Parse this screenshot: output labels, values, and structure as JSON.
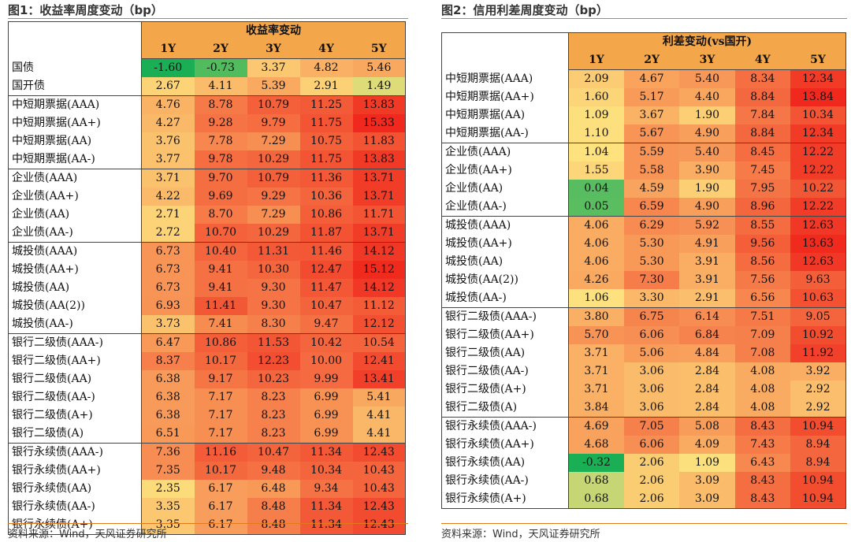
{
  "chart_data": [
    {
      "type": "heatmap",
      "title": "图1：收益率周度变动（bp）",
      "group_header": "收益率变动",
      "columns": [
        "1Y",
        "2Y",
        "3Y",
        "4Y",
        "5Y"
      ],
      "groups": [
        {
          "rows": [
            {
              "label": "国债",
              "values": [
                -1.6,
                -0.73,
                3.37,
                4.82,
                5.46
              ]
            },
            {
              "label": "国开债",
              "values": [
                2.67,
                4.11,
                5.39,
                2.91,
                1.49
              ]
            }
          ]
        },
        {
          "rows": [
            {
              "label": "中短期票据(AAA)",
              "values": [
                4.76,
                8.78,
                10.79,
                11.25,
                13.83
              ]
            },
            {
              "label": "中短期票据(AA+)",
              "values": [
                4.27,
                9.28,
                9.79,
                11.75,
                15.33
              ]
            },
            {
              "label": "中短期票据(AA)",
              "values": [
                3.76,
                7.78,
                7.29,
                10.75,
                11.83
              ]
            },
            {
              "label": "中短期票据(AA-)",
              "values": [
                3.77,
                9.78,
                10.29,
                11.75,
                13.83
              ]
            }
          ]
        },
        {
          "rows": [
            {
              "label": "企业债(AAA)",
              "values": [
                3.71,
                9.7,
                10.79,
                11.36,
                13.71
              ]
            },
            {
              "label": "企业债(AA+)",
              "values": [
                4.22,
                9.69,
                9.29,
                10.36,
                13.71
              ]
            },
            {
              "label": "企业债(AA)",
              "values": [
                2.71,
                8.7,
                7.29,
                10.86,
                11.71
              ]
            },
            {
              "label": "企业债(AA-)",
              "values": [
                2.72,
                10.7,
                10.29,
                11.87,
                13.71
              ]
            }
          ]
        },
        {
          "rows": [
            {
              "label": "城投债(AAA)",
              "values": [
                6.73,
                10.4,
                11.31,
                11.46,
                14.12
              ]
            },
            {
              "label": "城投债(AA+)",
              "values": [
                6.73,
                9.41,
                10.3,
                12.47,
                15.12
              ]
            },
            {
              "label": "城投债(AA)",
              "values": [
                6.73,
                9.41,
                9.3,
                11.47,
                14.12
              ]
            },
            {
              "label": "城投债(AA(2))",
              "values": [
                6.93,
                11.41,
                9.3,
                10.47,
                11.12
              ]
            },
            {
              "label": "城投债(AA-)",
              "values": [
                3.73,
                7.41,
                8.3,
                9.47,
                12.12
              ]
            }
          ]
        },
        {
          "rows": [
            {
              "label": "银行二级债(AAA-)",
              "values": [
                6.47,
                10.86,
                11.53,
                10.42,
                10.54
              ]
            },
            {
              "label": "银行二级债(AA+)",
              "values": [
                8.37,
                10.17,
                12.23,
                10.0,
                12.41
              ]
            },
            {
              "label": "银行二级债(AA)",
              "values": [
                6.38,
                9.17,
                10.23,
                9.99,
                13.41
              ]
            },
            {
              "label": "银行二级债(AA-)",
              "values": [
                6.38,
                7.17,
                8.23,
                6.99,
                5.41
              ]
            },
            {
              "label": "银行二级债(A+)",
              "values": [
                6.38,
                7.17,
                8.23,
                6.99,
                4.41
              ]
            },
            {
              "label": "银行二级债(A)",
              "values": [
                6.51,
                7.17,
                8.23,
                6.99,
                4.41
              ]
            }
          ]
        },
        {
          "rows": [
            {
              "label": "银行永续债(AAA-)",
              "values": [
                7.36,
                11.16,
                10.47,
                11.34,
                12.43
              ]
            },
            {
              "label": "银行永续债(AA+)",
              "values": [
                7.35,
                10.17,
                9.48,
                10.34,
                10.43
              ]
            },
            {
              "label": "银行永续债(AA)",
              "values": [
                2.35,
                6.17,
                6.48,
                9.34,
                10.43
              ]
            },
            {
              "label": "银行永续债(AA-)",
              "values": [
                3.35,
                6.17,
                8.48,
                11.34,
                12.43
              ]
            },
            {
              "label": "银行永续债(A+)",
              "values": [
                3.35,
                6.17,
                8.48,
                11.34,
                12.43
              ]
            }
          ]
        }
      ],
      "source": "资料来源：Wind，天风证券研究所"
    },
    {
      "type": "heatmap",
      "title": "图2：信用利差周度变动（bp）",
      "group_header": "利差变动(vs国开)",
      "columns": [
        "1Y",
        "2Y",
        "3Y",
        "4Y",
        "5Y"
      ],
      "groups": [
        {
          "rows": [
            {
              "label": "中短期票据(AAA)",
              "values": [
                2.09,
                4.67,
                5.4,
                8.34,
                12.34
              ]
            },
            {
              "label": "中短期票据(AA+)",
              "values": [
                1.6,
                5.17,
                4.4,
                8.84,
                13.84
              ]
            },
            {
              "label": "中短期票据(AA)",
              "values": [
                1.09,
                3.67,
                1.9,
                7.84,
                10.34
              ]
            },
            {
              "label": "中短期票据(AA-)",
              "values": [
                1.1,
                5.67,
                4.9,
                8.84,
                12.34
              ]
            }
          ]
        },
        {
          "rows": [
            {
              "label": "企业债(AAA)",
              "values": [
                1.04,
                5.59,
                5.4,
                8.45,
                12.22
              ]
            },
            {
              "label": "企业债(AA+)",
              "values": [
                1.55,
                5.58,
                3.9,
                7.45,
                12.22
              ]
            },
            {
              "label": "企业债(AA)",
              "values": [
                0.04,
                4.59,
                1.9,
                7.95,
                10.22
              ]
            },
            {
              "label": "企业债(AA-)",
              "values": [
                0.05,
                6.59,
                4.9,
                8.96,
                12.22
              ]
            }
          ]
        },
        {
          "rows": [
            {
              "label": "城投债(AAA)",
              "values": [
                4.06,
                6.29,
                5.92,
                8.55,
                12.63
              ]
            },
            {
              "label": "城投债(AA+)",
              "values": [
                4.06,
                5.3,
                4.91,
                9.56,
                13.63
              ]
            },
            {
              "label": "城投债(AA)",
              "values": [
                4.06,
                5.3,
                3.91,
                8.56,
                12.63
              ]
            },
            {
              "label": "城投债(AA(2))",
              "values": [
                4.26,
                7.3,
                3.91,
                7.56,
                9.63
              ]
            },
            {
              "label": "城投债(AA-)",
              "values": [
                1.06,
                3.3,
                2.91,
                6.56,
                10.63
              ]
            }
          ]
        },
        {
          "rows": [
            {
              "label": "银行二级债(AAA-)",
              "values": [
                3.8,
                6.75,
                6.14,
                7.51,
                9.05
              ]
            },
            {
              "label": "银行二级债(AA+)",
              "values": [
                5.7,
                6.06,
                6.84,
                7.09,
                10.92
              ]
            },
            {
              "label": "银行二级债(AA)",
              "values": [
                3.71,
                5.06,
                4.84,
                7.08,
                11.92
              ]
            },
            {
              "label": "银行二级债(AA-)",
              "values": [
                3.71,
                3.06,
                2.84,
                4.08,
                3.92
              ]
            },
            {
              "label": "银行二级债(A+)",
              "values": [
                3.71,
                3.06,
                2.84,
                4.08,
                2.92
              ]
            },
            {
              "label": "银行二级债(A)",
              "values": [
                3.84,
                3.06,
                2.84,
                4.08,
                2.92
              ]
            }
          ]
        },
        {
          "rows": [
            {
              "label": "银行永续债(AAA-)",
              "values": [
                4.69,
                7.05,
                5.08,
                8.43,
                10.94
              ]
            },
            {
              "label": "银行永续债(AA+)",
              "values": [
                4.68,
                6.06,
                4.09,
                7.43,
                8.94
              ]
            },
            {
              "label": "银行永续债(AA)",
              "values": [
                -0.32,
                2.06,
                1.09,
                6.43,
                8.94
              ]
            },
            {
              "label": "银行永续债(AA-)",
              "values": [
                0.68,
                2.06,
                3.09,
                8.43,
                10.94
              ]
            },
            {
              "label": "银行永续债(A+)",
              "values": [
                0.68,
                2.06,
                3.09,
                8.43,
                10.94
              ]
            }
          ]
        }
      ],
      "source": "资料来源：Wind，天风证券研究所"
    }
  ],
  "colors": {
    "header_fill": "#f3a64a",
    "rule": "#e07a1a",
    "scale_low": "#1aaf54",
    "scale_mid": "#fde37f",
    "scale_high": "#f0281d"
  }
}
